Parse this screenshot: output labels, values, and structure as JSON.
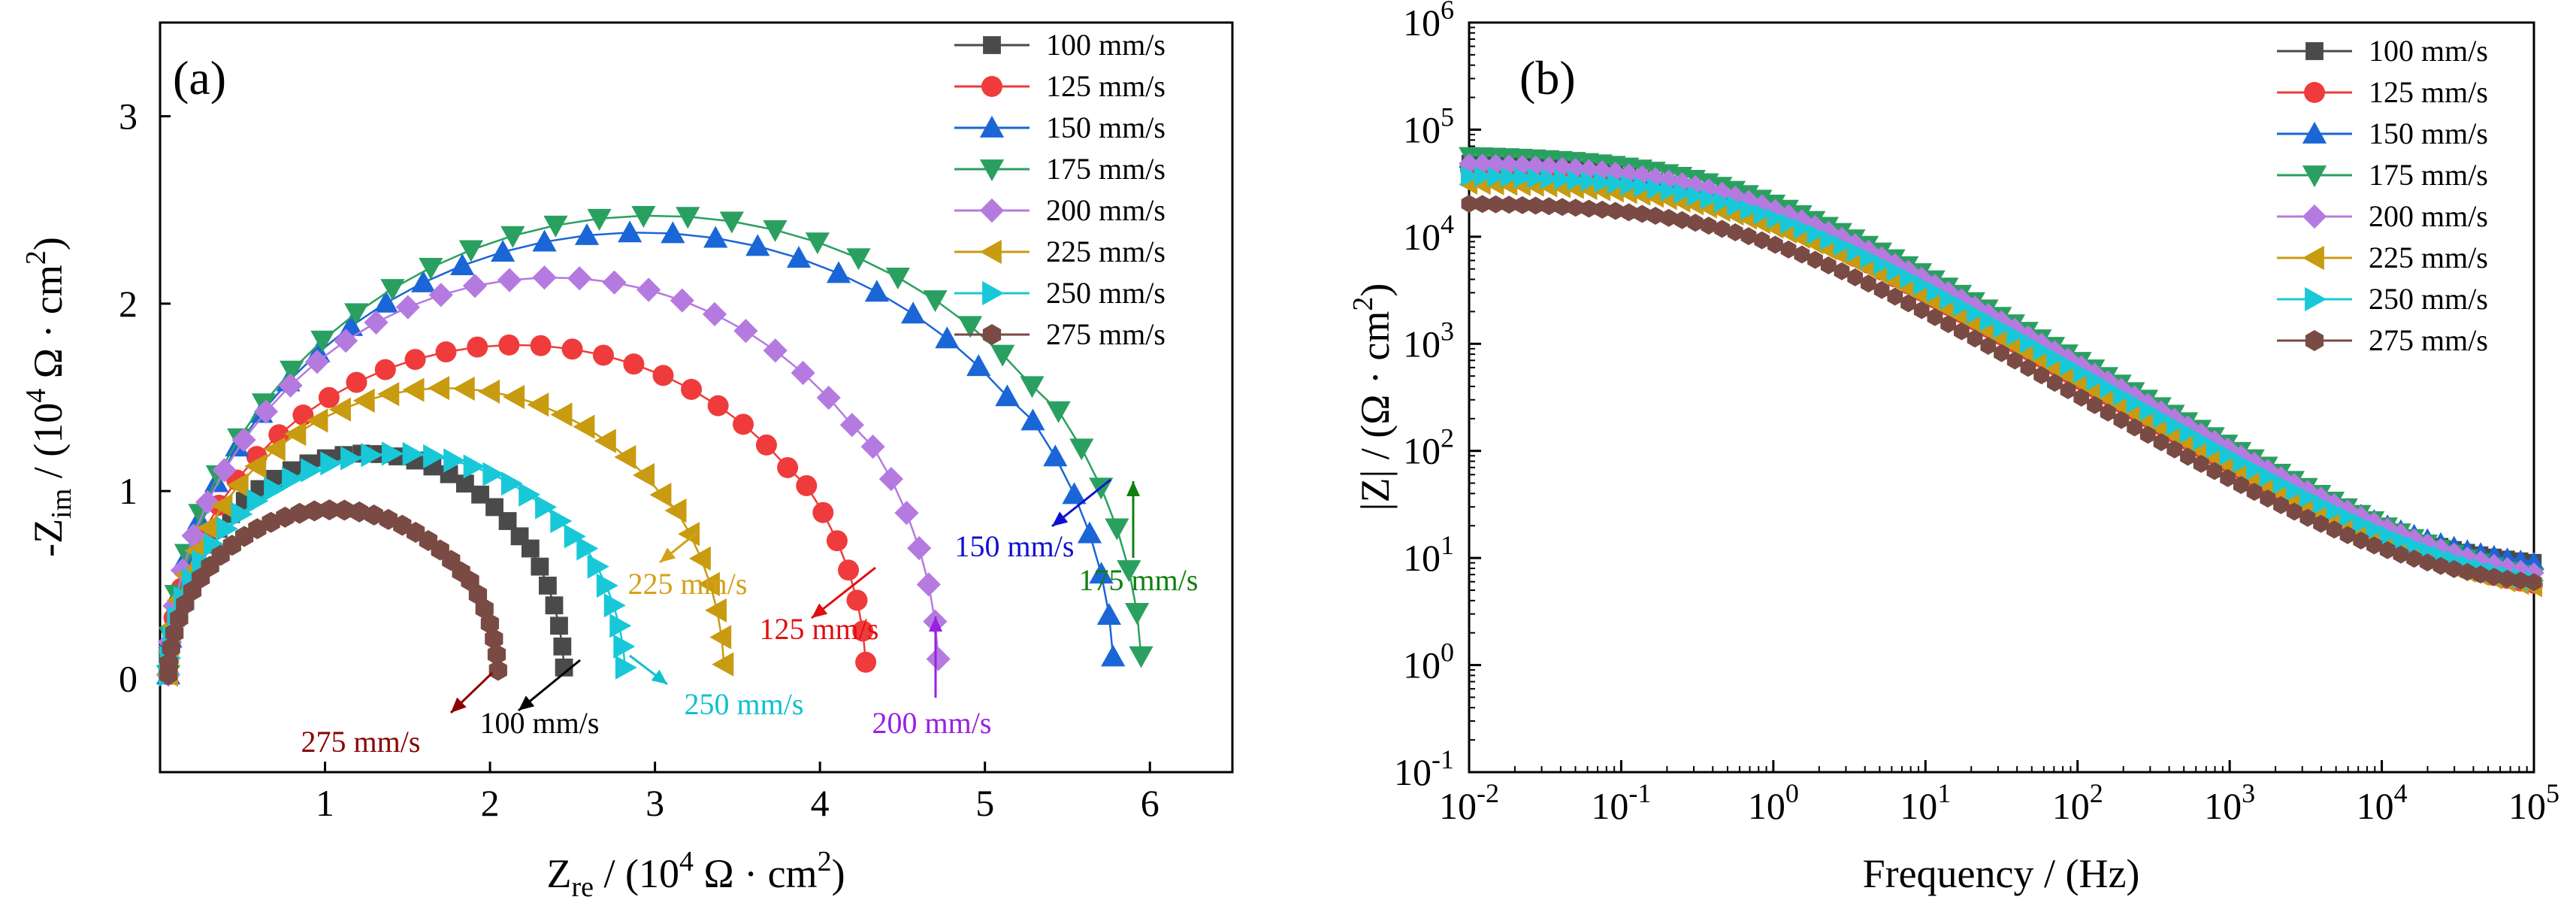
{
  "figure": {
    "panels": [
      {
        "label": "(a)",
        "type": "scatter",
        "title": "",
        "xlabel_main": "Z",
        "xlabel_sub": "re",
        "xlabel_pre": " / (10",
        "xlabel_sup": "4",
        "xlabel_post": " Ω · cm",
        "xlabel_sup2": "2",
        "xlabel_close": ")",
        "ylabel_main": "-Z",
        "ylabel_sub": "im",
        "ylabel_pre": " / (10",
        "ylabel_sup": "4",
        "ylabel_post": " Ω · cm",
        "ylabel_sup2": "2",
        "ylabel_close": ")",
        "xlim": [
          0,
          6.5
        ],
        "ylim": [
          -0.5,
          3.5
        ],
        "xticks": [
          "1",
          "2",
          "3",
          "4",
          "5",
          "6"
        ],
        "xtick_values": [
          1,
          2,
          3,
          4,
          5,
          6
        ],
        "yticks": [
          "0",
          "1",
          "2",
          "3"
        ],
        "ytick_values": [
          0,
          1,
          2,
          3
        ]
      },
      {
        "label": "(b)",
        "type": "line",
        "xlabel": "Frequency / (Hz)",
        "ylabel_main": "|Z| / (Ω · cm",
        "ylabel_sup": "2",
        "ylabel_close": ")",
        "xscale": "log",
        "yscale": "log",
        "xlim_exp": [
          -2,
          5
        ],
        "ylim_exp": [
          -1,
          6
        ],
        "xtick_exps": [
          "-2",
          "-1",
          "0",
          "1",
          "2",
          "3",
          "4",
          "5"
        ],
        "ytick_exps": [
          "-1",
          "0",
          "1",
          "2",
          "3",
          "4",
          "5",
          "6"
        ],
        "tick_base": "10"
      }
    ]
  },
  "series": [
    {
      "name": "100 mm/s",
      "color": "#4a4a4a",
      "marker": "square",
      "anno": "100 mm/s",
      "anno_color": "#000000",
      "R": 2.45,
      "K": 1.2
    },
    {
      "name": "125 mm/s",
      "color": "#ef3b3b",
      "marker": "circle",
      "anno": "125 mm/s",
      "anno_color": "#e01010",
      "R": 4.28,
      "K": 1.78
    },
    {
      "name": "150 mm/s",
      "color": "#1a66d6",
      "marker": "triangle-up",
      "anno": "150 mm/s",
      "anno_color": "#1010d0",
      "R": 5.78,
      "K": 2.38
    },
    {
      "name": "175 mm/s",
      "color": "#2aa060",
      "marker": "triangle-down",
      "anno": "175 mm/s",
      "anno_color": "#108010",
      "R": 5.95,
      "K": 2.47
    },
    {
      "name": "200 mm/s",
      "color": "#b57ae0",
      "marker": "diamond",
      "anno": "200 mm/s",
      "anno_color": "#9a20e0",
      "R": 4.72,
      "K": 2.14
    },
    {
      "name": "225 mm/s",
      "color": "#c89b10",
      "marker": "triangle-left",
      "anno": "225 mm/s",
      "anno_color": "#d4a017",
      "R": 3.42,
      "K": 1.55
    },
    {
      "name": "250 mm/s",
      "color": "#18c8d8",
      "marker": "triangle-right",
      "anno": "250 mm/s",
      "anno_color": "#10c0d0",
      "R": 2.82,
      "K": 1.2
    },
    {
      "name": "275 mm/s",
      "color": "#7a4a44",
      "marker": "hexagon",
      "anno": "275 mm/s",
      "anno_color": "#8b0000",
      "R": 2.05,
      "K": 0.9
    }
  ],
  "chart_data": [
    {
      "type": "scatter",
      "title": "(a)",
      "xlabel": "Zre / (10^4 Ω · cm2)",
      "ylabel": "-Zim / (10^4 Ω · cm2)",
      "xlim": [
        0,
        6.5
      ],
      "ylim": [
        -0.5,
        3.5
      ],
      "series_peaks": [
        {
          "name": "100 mm/s",
          "max_zre": 2.55,
          "peak_zim": 1.15
        },
        {
          "name": "125 mm/s",
          "max_zre": 4.35,
          "peak_zim": 1.77
        },
        {
          "name": "150 mm/s",
          "max_zre": 5.75,
          "peak_zim": 2.37
        },
        {
          "name": "175 mm/s",
          "max_zre": 5.92,
          "peak_zim": 2.46
        },
        {
          "name": "200 mm/s",
          "max_zre": 4.7,
          "peak_zim": 2.13
        },
        {
          "name": "225 mm/s",
          "max_zre": 3.42,
          "peak_zim": 1.54
        },
        {
          "name": "250 mm/s",
          "max_zre": 2.8,
          "peak_zim": 1.2
        },
        {
          "name": "275 mm/s",
          "max_zre": 2.05,
          "peak_zim": 0.89
        }
      ]
    },
    {
      "type": "line",
      "title": "(b)",
      "xlabel": "Frequency / (Hz)",
      "ylabel": "|Z| / (Ω · cm2)",
      "xscale": "log",
      "yscale": "log",
      "xlim": [
        0.01,
        100000
      ],
      "ylim": [
        0.1,
        1000000
      ],
      "low_freq_modulus": [
        {
          "name": "100 mm/s",
          "z_at_0.01Hz": 52000,
          "z_at_1e5Hz": 7.5
        },
        {
          "name": "125 mm/s",
          "z_at_0.01Hz": 44000,
          "z_at_1e5Hz": 4.0
        },
        {
          "name": "150 mm/s",
          "z_at_0.01Hz": 55000,
          "z_at_1e5Hz": 7.0
        },
        {
          "name": "175 mm/s",
          "z_at_0.01Hz": 60000,
          "z_at_1e5Hz": 4.2
        },
        {
          "name": "200 mm/s",
          "z_at_0.01Hz": 50000,
          "z_at_1e5Hz": 5.0
        },
        {
          "name": "225 mm/s",
          "z_at_0.01Hz": 32000,
          "z_at_1e5Hz": 3.8
        },
        {
          "name": "250 mm/s",
          "z_at_0.01Hz": 38000,
          "z_at_1e5Hz": 4.2
        },
        {
          "name": "275 mm/s",
          "z_at_0.01Hz": 21000,
          "z_at_1e5Hz": 4.8
        }
      ]
    }
  ]
}
